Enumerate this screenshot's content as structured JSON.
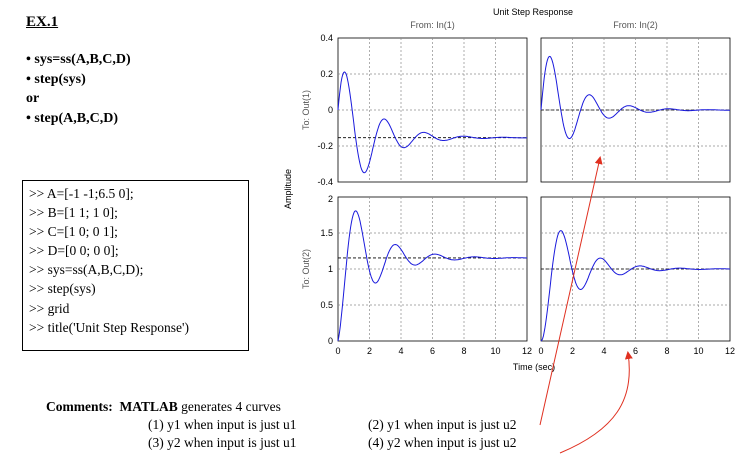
{
  "heading": "EX.1",
  "bullets": [
    "• sys=ss(A,B,C,D)",
    "• step(sys)",
    "or",
    "• step(A,B,C,D)"
  ],
  "code_lines": [
    ">> A=[-1 -1;6.5 0];",
    ">> B=[1 1; 1 0];",
    ">> C=[1 0; 0 1];",
    ">> D=[0 0; 0 0];",
    ">> sys=ss(A,B,C,D);",
    ">> step(sys)",
    ">> grid",
    ">> title('Unit  Step Response')"
  ],
  "comments": {
    "label": "Comments:",
    "intro_bold": "MATLAB",
    "intro_rest": " generates 4 curves",
    "items": [
      "(1)  y1 when input is just u1",
      "(2)  y1 when input is just u2",
      "(3)   y2 when input is just u1",
      "(4)  y2 when input is just u2"
    ]
  },
  "colors": {
    "curve": "#1a1adc",
    "annotation": "#e03020",
    "grid": "#8c8c8c"
  },
  "chart_data": {
    "type": "line",
    "title": "Unit Step Response",
    "xlabel": "Time (sec)",
    "ylabel": "Amplitude",
    "column_titles": [
      "From: In(1)",
      "From: In(2)"
    ],
    "row_labels": [
      "To: Out(1)",
      "To: Out(2)"
    ],
    "xlim": [
      0,
      12
    ],
    "xticks": [
      0,
      2,
      4,
      6,
      8,
      10,
      12
    ],
    "grid": true,
    "rows": [
      {
        "ylim": [
          -0.4,
          0.4
        ],
        "yticks": [
          -0.4,
          -0.2,
          0,
          0.2,
          0.4
        ]
      },
      {
        "ylim": [
          0,
          2
        ],
        "yticks": [
          0,
          0.5,
          1,
          1.5,
          2
        ]
      }
    ],
    "system": {
      "A": [
        [
          -1,
          -1
        ],
        [
          6.5,
          0
        ]
      ],
      "B": [
        [
          1,
          1
        ],
        [
          1,
          0
        ]
      ],
      "C": [
        [
          1,
          0
        ],
        [
          0,
          1
        ]
      ],
      "D": [
        [
          0,
          0
        ],
        [
          0,
          0
        ]
      ]
    },
    "panels": [
      {
        "row": 0,
        "col": 0,
        "steady_state": -0.1538,
        "peak": 0.21,
        "trough": -0.35
      },
      {
        "row": 0,
        "col": 1,
        "steady_state": 0,
        "peak": 0.29,
        "trough": -0.16
      },
      {
        "row": 1,
        "col": 0,
        "steady_state": 1.1538,
        "peak": 1.82,
        "trough": 0.8
      },
      {
        "row": 1,
        "col": 1,
        "steady_state": 1,
        "peak": 1.52,
        "trough": 0.72
      }
    ]
  }
}
